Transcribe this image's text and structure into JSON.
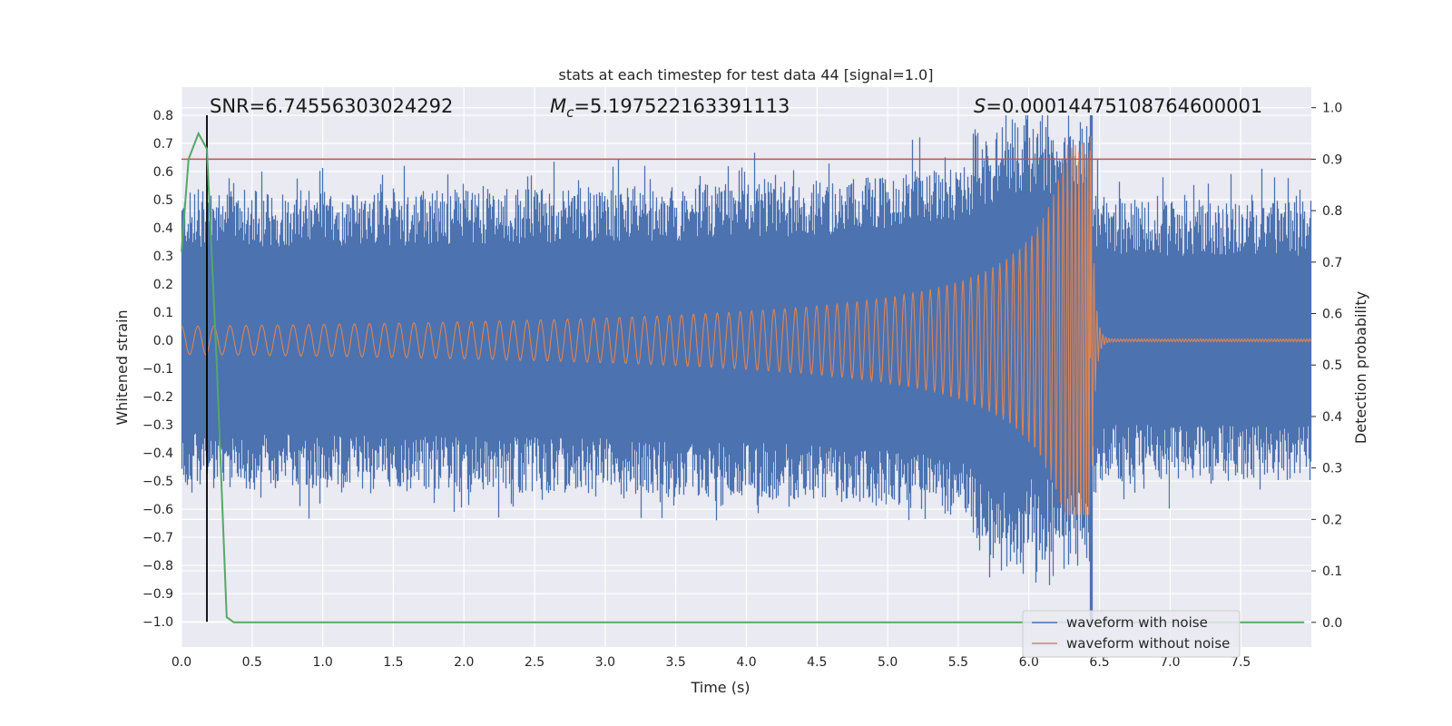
{
  "chart_data": {
    "type": "line",
    "title": "stats at each timestep for test data 44 [signal=1.0]",
    "xlabel": "Time (s)",
    "ylabel": "Whitened strain",
    "y2label": "Detection probability",
    "xlim": [
      0.0,
      8.0
    ],
    "ylim": [
      -1.09,
      0.9
    ],
    "y2lim": [
      -0.048,
      1.04
    ],
    "xticks": [
      0.0,
      0.5,
      1.0,
      1.5,
      2.0,
      2.5,
      3.0,
      3.5,
      4.0,
      4.5,
      5.0,
      5.5,
      6.0,
      6.5,
      7.0,
      7.5
    ],
    "yticks": [
      0.8,
      0.7,
      0.6,
      0.5,
      0.4,
      0.3,
      0.2,
      0.1,
      0.0,
      -0.1,
      -0.2,
      -0.3,
      -0.4,
      -0.5,
      -0.6,
      -0.7,
      -0.8,
      -0.9,
      -1.0
    ],
    "y2ticks": [
      1.0,
      0.9,
      0.8,
      0.7,
      0.6,
      0.5,
      0.4,
      0.3,
      0.2,
      0.1,
      0.0
    ],
    "grid": true,
    "legend_position": "bottom-right",
    "annotations": {
      "snr": "SNR=6.74556303024292",
      "mc_symbol": "M",
      "mc_sub": "c",
      "mc_value": "=5.197522163391113",
      "s_symbol": "S",
      "s_value": "=0.00014475108764600001"
    },
    "series": [
      {
        "name": "waveform with noise",
        "color": "#4c72b0",
        "axis": "left",
        "kind": "noisy-envelope",
        "base_amplitude": 0.5,
        "max_amplitude": 0.8,
        "min_value": -1.0,
        "peak_time": 6.44
      },
      {
        "name": "waveform without noise",
        "color": "#dd8452",
        "axis": "left",
        "kind": "chirp",
        "start_amplitude": 0.05,
        "peak_amplitude_positive": 0.72,
        "peak_amplitude_negative": -0.62,
        "merger_time": 6.44,
        "ringdown_amplitude": 0.005
      },
      {
        "color": "#55a868",
        "axis": "right",
        "x": [
          0.0,
          0.05,
          0.12,
          0.18,
          0.25,
          0.32,
          0.37,
          7.95
        ],
        "y": [
          0.72,
          0.9,
          0.95,
          0.92,
          0.5,
          0.01,
          0.0,
          0.0
        ]
      }
    ],
    "hlines": [
      {
        "axis": "right",
        "y": 0.9,
        "color": "#c44e52"
      }
    ],
    "vlines": [
      {
        "x": 0.18,
        "color": "#000000"
      }
    ]
  }
}
